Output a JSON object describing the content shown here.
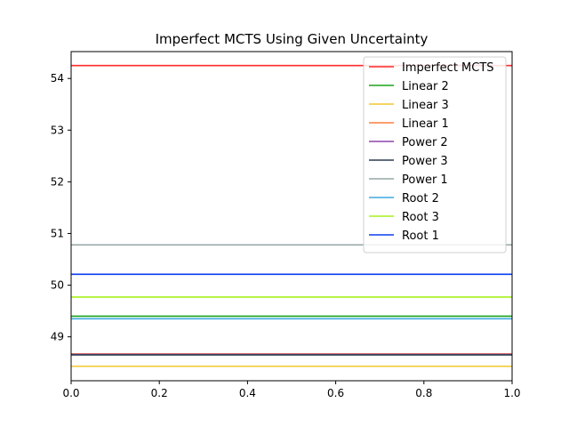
{
  "chart_data": {
    "type": "line",
    "title": "Imperfect MCTS Using Given Uncertainty",
    "xlabel": "",
    "ylabel": "",
    "xlim": [
      0,
      1
    ],
    "ylim": [
      48.15,
      54.52
    ],
    "x_ticks": [
      "0.0",
      "0.2",
      "0.4",
      "0.6",
      "0.8",
      "1.0"
    ],
    "y_ticks": [
      "49",
      "50",
      "51",
      "52",
      "53",
      "54"
    ],
    "grid": false,
    "legend_position": "top-right",
    "series": [
      {
        "name": "Imperfect MCTS",
        "color": "#ff2a2a",
        "x": [
          0,
          1
        ],
        "y": [
          54.25,
          54.25
        ]
      },
      {
        "name": "Linear 2",
        "color": "#1aa31a",
        "x": [
          0,
          1
        ],
        "y": [
          49.4,
          49.4
        ]
      },
      {
        "name": "Linear 3",
        "color": "#f2c72c",
        "x": [
          0,
          1
        ],
        "y": [
          48.43,
          48.43
        ]
      },
      {
        "name": "Linear 1",
        "color": "#ff7f3f",
        "x": [
          0,
          1
        ],
        "y": [
          48.67,
          48.67
        ]
      },
      {
        "name": "Power 2",
        "color": "#8e44ad",
        "x": [
          0,
          1
        ],
        "y": [
          48.66,
          48.66
        ]
      },
      {
        "name": "Power 3",
        "color": "#2c3e50",
        "x": [
          0,
          1
        ],
        "y": [
          48.65,
          48.65
        ]
      },
      {
        "name": "Power 1",
        "color": "#95a5a6",
        "x": [
          0,
          1
        ],
        "y": [
          50.78,
          50.78
        ]
      },
      {
        "name": "Root 2",
        "color": "#3fa9e0",
        "x": [
          0,
          1
        ],
        "y": [
          49.35,
          49.35
        ]
      },
      {
        "name": "Root 3",
        "color": "#a5f21a",
        "x": [
          0,
          1
        ],
        "y": [
          49.77,
          49.77
        ]
      },
      {
        "name": "Root 1",
        "color": "#0a3ef0",
        "x": [
          0,
          1
        ],
        "y": [
          50.21,
          50.21
        ]
      }
    ]
  }
}
